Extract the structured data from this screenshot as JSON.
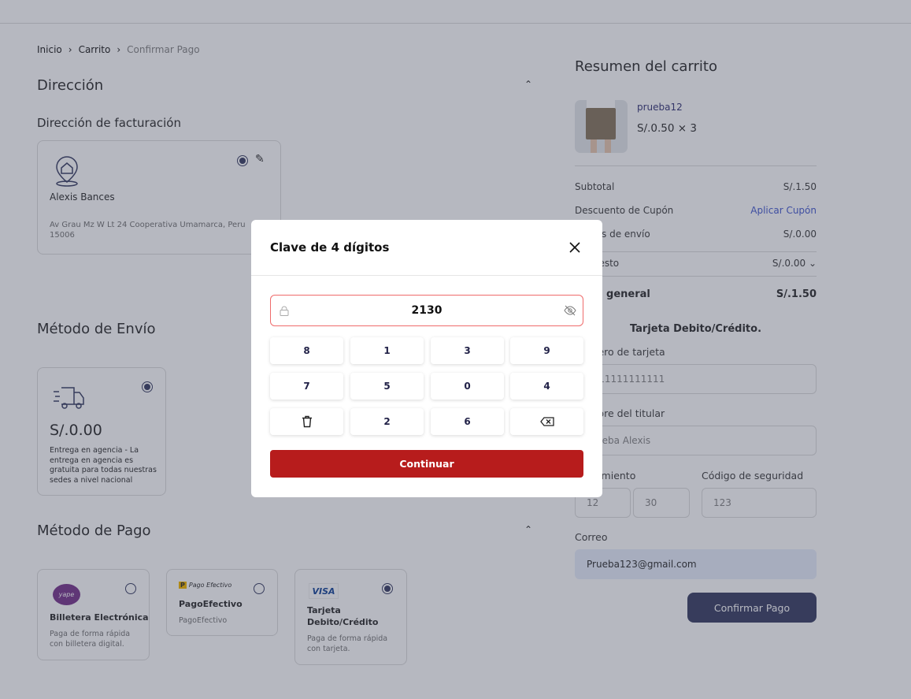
{
  "breadcrumb": [
    "Inicio",
    "Carrito",
    "Confirmar Pago"
  ],
  "address": {
    "section_title": "Dirección",
    "subtitle": "Dirección de facturación",
    "name": "Alexis Bances",
    "line": "Av Grau Mz W Lt 24 Cooperativa Umamarca, Peru",
    "zip": "15006"
  },
  "shipping": {
    "section_title": "Método de Envío",
    "price": "S/.0.00",
    "description": "Entrega en agencia - La entrega en agencia es gratuita para todas nuestras sedes a nivel nacional"
  },
  "payment": {
    "section_title": "Método de Pago",
    "options": [
      {
        "logo": "yape",
        "title": "Billetera Electrónica",
        "desc": "Paga de forma rápida con billetera digital.",
        "selected": false
      },
      {
        "logo": "Pago Efectivo",
        "title": "PagoEfectivo",
        "desc": "PagoEfectivo",
        "selected": false
      },
      {
        "logo": "VISA",
        "title": "Tarjeta Debito/Crédito",
        "desc": "Paga de forma rápida con tarjeta.",
        "selected": true
      }
    ]
  },
  "summary": {
    "title": "Resumen del carrito",
    "product": {
      "name": "prueba12",
      "price": "S/.0.50 × 3"
    },
    "subtotal_label": "Subtotal",
    "subtotal": "S/.1.50",
    "coupon_label": "Descuento de Cupón",
    "coupon_link": "Aplicar Cupón",
    "shipping_label": "Costos de envío",
    "shipping": "S/.0.00",
    "tax_label": "Impuesto",
    "tax": "S/.0.00",
    "total_label": "Total general",
    "total": "S/.1.50"
  },
  "card_form": {
    "title": "Tarjeta Debito/Crédito.",
    "number_label": "Número de tarjeta",
    "number": "1111111111111",
    "holder_label": "Nombre del titular",
    "holder": "Prueba Alexis",
    "expiry_label": "Vencimiento",
    "month": "12",
    "year": "30",
    "cvv_label": "Código de seguridad",
    "cvv": "123",
    "email_label": "Correo",
    "email": "Prueba123@gmail.com",
    "confirm": "Confirmar Pago"
  },
  "modal": {
    "title": "Clave de 4 dígitos",
    "pin": "2130",
    "keys": [
      "8",
      "1",
      "3",
      "9",
      "7",
      "5",
      "0",
      "4",
      "",
      "2",
      "6",
      ""
    ],
    "continue": "Continuar",
    "accent": "#b71c1c"
  }
}
